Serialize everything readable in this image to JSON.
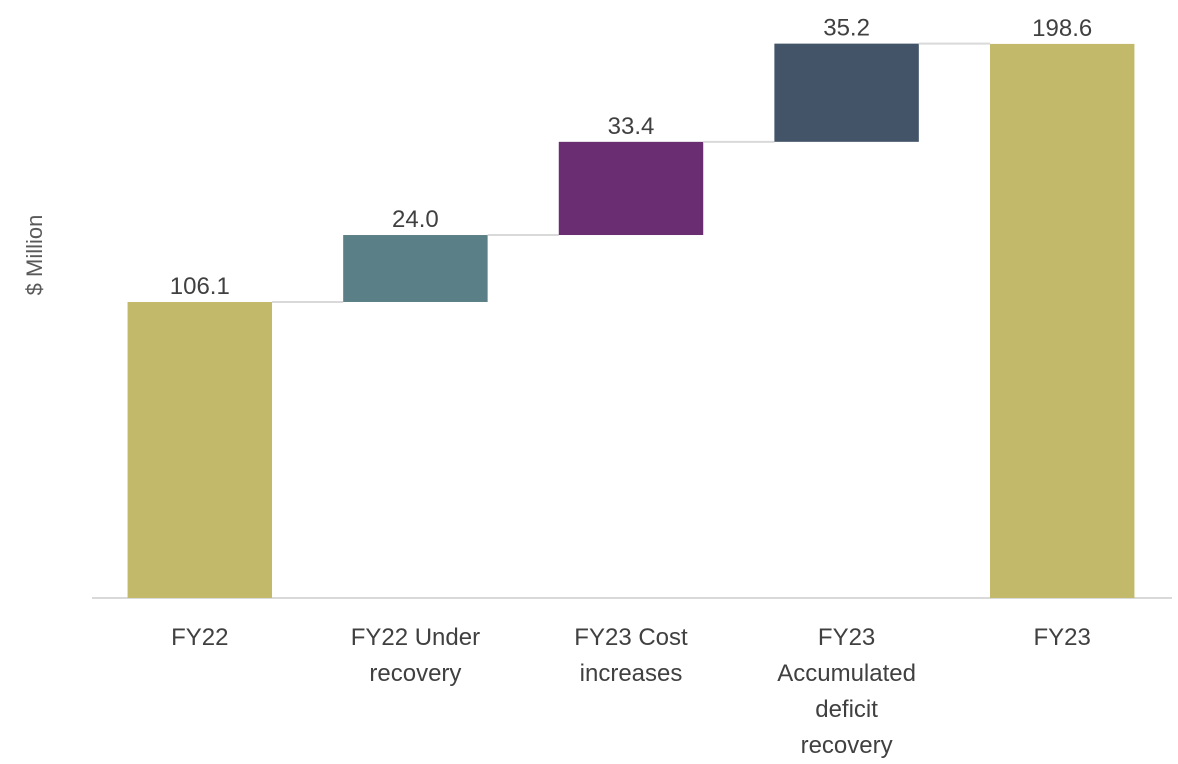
{
  "chart_data": {
    "type": "waterfall",
    "y_label": "$ Million",
    "categories": [
      "FY22",
      "FY22 Under recovery",
      "FY23 Cost increases",
      "FY23 Accumulated deficit recovery",
      "FY23"
    ],
    "values": [
      106.1,
      24.0,
      33.4,
      35.2,
      198.6
    ],
    "value_labels": [
      "106.1",
      "24.0",
      "33.4",
      "35.2",
      "198.6"
    ],
    "measures": [
      "total",
      "relative",
      "relative",
      "relative",
      "total"
    ],
    "colors": [
      "#c2b96a",
      "#5b7f86",
      "#6b2d72",
      "#435469",
      "#c2b96a"
    ],
    "ylim": [
      0,
      200
    ]
  }
}
